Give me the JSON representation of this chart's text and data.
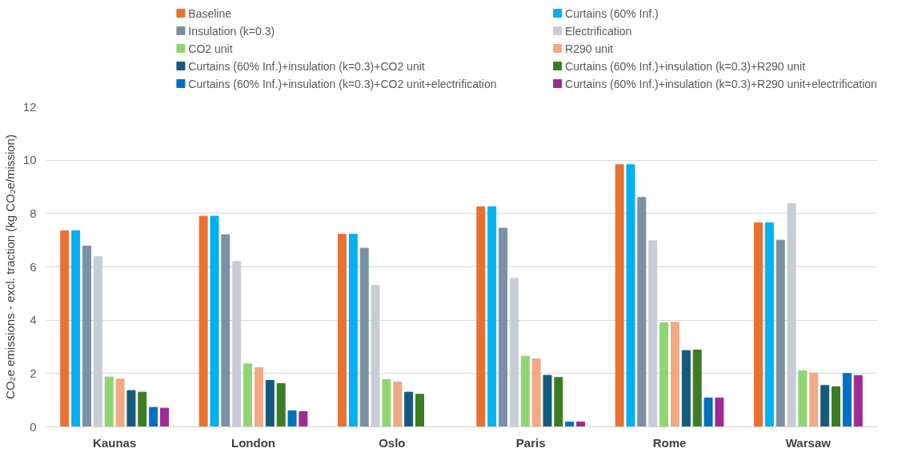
{
  "chart_data": {
    "type": "bar",
    "ylabel": "CO₂e emissions - excl. traction (kg CO₂e/mission)",
    "categories": [
      "Kaunas",
      "London",
      "Oslo",
      "Paris",
      "Rome",
      "Warsaw"
    ],
    "ylim": [
      0,
      12
    ],
    "yticks": [
      0,
      2,
      4,
      6,
      8,
      10,
      12
    ],
    "grid": "y",
    "legend": "top",
    "series": [
      {
        "name": "Baseline",
        "color": "#e97132",
        "values": [
          7.35,
          7.9,
          7.22,
          8.25,
          9.83,
          7.65
        ]
      },
      {
        "name": "Curtains (60% Inf.)",
        "color": "#00b0f0",
        "values": [
          7.35,
          7.9,
          7.22,
          8.25,
          9.83,
          7.65
        ]
      },
      {
        "name": "Insulation (k=0.3)",
        "color": "#7b90a4",
        "values": [
          6.78,
          7.2,
          6.7,
          7.45,
          8.6,
          7.0
        ]
      },
      {
        "name": "Electrification",
        "color": "#c8cdd5",
        "values": [
          6.38,
          6.2,
          5.3,
          5.57,
          6.98,
          8.37
        ]
      },
      {
        "name": "CO2 unit",
        "color": "#8fd672",
        "values": [
          1.87,
          2.36,
          1.77,
          2.65,
          3.9,
          2.1
        ]
      },
      {
        "name": "R290 unit",
        "color": "#f1a983",
        "values": [
          1.79,
          2.22,
          1.68,
          2.55,
          3.92,
          2.02
        ]
      },
      {
        "name": "Curtains (60% Inf.)+insulation (k=0.3)+CO2 unit",
        "color": "#155a7d",
        "values": [
          1.36,
          1.74,
          1.3,
          1.93,
          2.86,
          1.55
        ]
      },
      {
        "name": "Curtains (60% Inf.)+insulation (k=0.3)+R290 unit",
        "color": "#3c7d22",
        "values": [
          1.3,
          1.62,
          1.22,
          1.85,
          2.88,
          1.5
        ]
      },
      {
        "name": "Curtains (60% Inf.)+insulation (k=0.3)+CO2 unit+electrification",
        "color": "#0070c0",
        "values": [
          0.73,
          0.6,
          null,
          0.18,
          1.08,
          2.0
        ]
      },
      {
        "name": "Curtains (60% Inf.)+insulation (k=0.3)+R290 unit+electrification",
        "color": "#a02b93",
        "values": [
          0.7,
          0.57,
          null,
          0.18,
          1.08,
          1.92
        ]
      }
    ]
  }
}
